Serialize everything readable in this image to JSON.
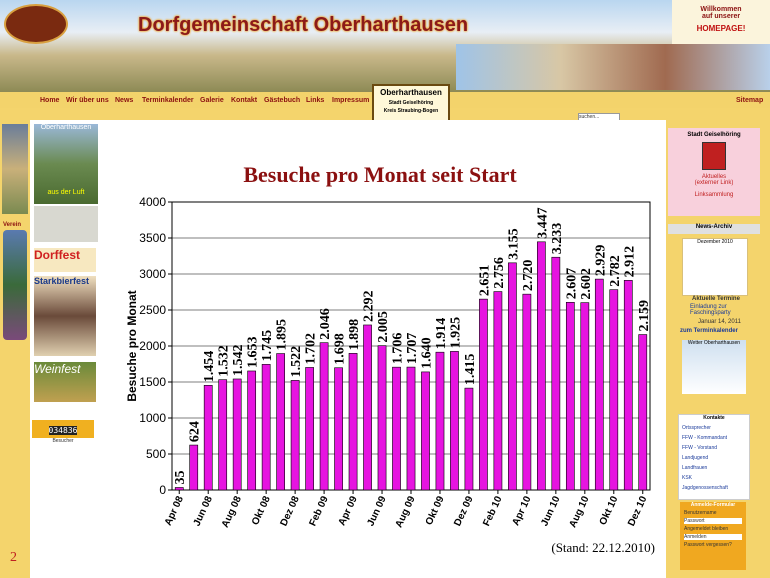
{
  "header": {
    "title": "Dorfgemeinschaft Oberharthausen",
    "welcome": [
      "Willkommen",
      "auf unserer",
      "HOMEPAGE!"
    ]
  },
  "nav": {
    "items": [
      "Home",
      "Wir über uns",
      "News",
      "Terminkalender",
      "Galerie",
      "Kontakt",
      "Gästebuch",
      "Links",
      "Impressum"
    ],
    "sitemap": "Sitemap"
  },
  "badge": [
    "Oberharthausen",
    "Stadt Geiselhöring",
    "Kreis Straubing-Bogen"
  ],
  "search": "suchen...",
  "left": {
    "aerial": [
      "Oberharthausen",
      "aus der Luft"
    ],
    "verein": "Verein",
    "dorffest": "Dorffest",
    "starkbierfest": "Starkbierfest",
    "weinfest": "Weinfest",
    "counter": "034836",
    "counter_label": "Besucher"
  },
  "right": {
    "city": "Stadt Geiselhöring",
    "city_links": [
      "Aktuelles",
      "(externer Link)",
      "Linksammlung"
    ],
    "archive": "News-Archiv",
    "calendar": "Dezember 2010",
    "events_title": "Aktuelle Termine",
    "event": "Einladung zur Faschingsparty",
    "event_date": "Januar 14, 2011",
    "calendar_link": "zum Terminkalender",
    "weather": "Wetter Oberharthausen",
    "contacts_title": "Kontakte",
    "contacts": [
      "Ortssprecher",
      "FFW - Kommandant",
      "FFW - Vorstand",
      "Landjugend",
      "Landfrauen",
      "KSK",
      "Jagdgenossenschaft"
    ],
    "login_title": "Anmelde-Formular",
    "login": [
      "Benutzername",
      "Passwort",
      "Angemeldet bleiben",
      "Anmelden",
      "Passwort vergessen?"
    ]
  },
  "slide_number": "2",
  "stand": "(Stand: 22.12.2010)",
  "chart_data": {
    "type": "bar",
    "title": "Besuche pro Monat seit Start",
    "y_label": "Besuche pro Monat",
    "color": "#e614e0",
    "categories": [
      "Apr 08",
      null,
      "Jun 08",
      null,
      "Aug 08",
      null,
      "Okt 08",
      null,
      "Dez 08",
      null,
      "Feb 09",
      null,
      "Apr 09",
      null,
      "Jun 09",
      null,
      "Aug 09",
      null,
      "Okt 09",
      null,
      "Dez 09",
      null,
      "Feb 10",
      null,
      "Apr 10",
      null,
      "Jun 10",
      null,
      "Aug 10",
      null,
      "Okt 10",
      null,
      "Dez 10"
    ],
    "values": [
      35,
      624,
      1454,
      1532,
      1542,
      1653,
      1745,
      1895,
      1522,
      1702,
      2046,
      1698,
      1898,
      2292,
      2005,
      1706,
      1707,
      1640,
      1914,
      1925,
      1415,
      2651,
      2756,
      3155,
      2720,
      3447,
      3233,
      2607,
      2602,
      2929,
      2782,
      2912,
      2159
    ],
    "value_labels": [
      "35",
      "624",
      "1.454",
      "1.532",
      "1.542",
      "1.653",
      "1.745",
      "1.895",
      "1.522",
      "1.702",
      "2.046",
      "1.698",
      "1.898",
      "2.292",
      "2.005",
      "1.706",
      "1.707",
      "1.640",
      "1.914",
      "1.925",
      "1.415",
      "2.651",
      "2.756",
      "3.155",
      "2.720",
      "3.447",
      "3.233",
      "2.607",
      "2.602",
      "2.929",
      "2.782",
      "2.912",
      "2.159"
    ],
    "ylim": [
      0,
      4000
    ],
    "yticks": [
      0,
      500,
      1000,
      1500,
      2000,
      2500,
      3000,
      3500,
      4000
    ],
    "grid": true
  }
}
